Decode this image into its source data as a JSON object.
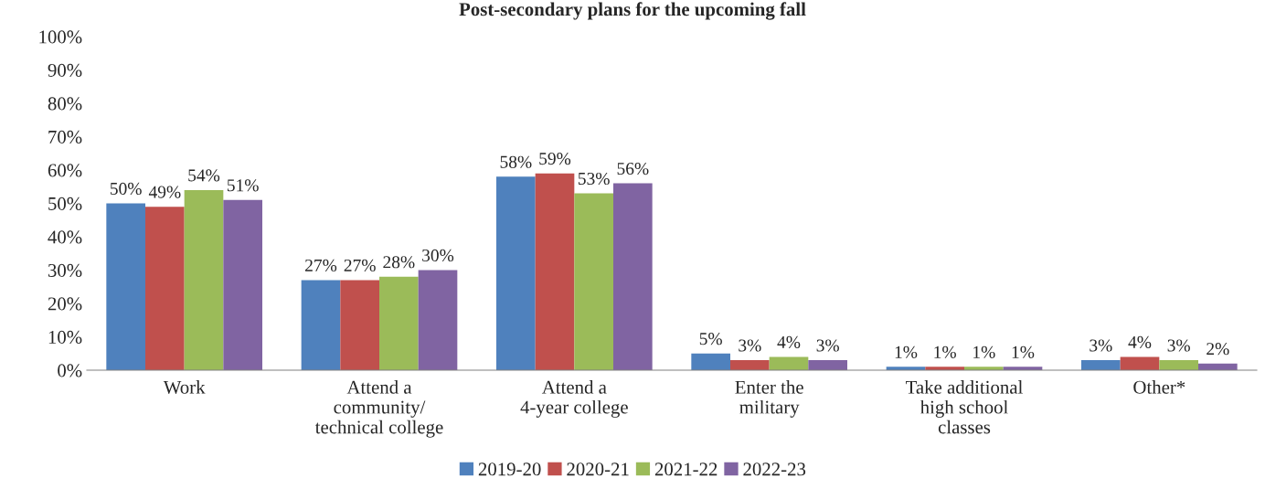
{
  "chart_data": {
    "type": "bar",
    "title": "Post-secondary plans for the upcoming fall",
    "categories": [
      "Work",
      "Attend a\ncommunity/\ntechnical college",
      "Attend a\n4-year college",
      "Enter the\nmilitary",
      "Take additional\nhigh school\nclasses",
      "Other*"
    ],
    "series": [
      {
        "name": "2019-20",
        "color": "#4f81bd",
        "values": [
          50,
          27,
          58,
          5,
          1,
          3
        ],
        "value_labels": [
          "50%",
          "27%",
          "58%",
          "5%",
          "1%",
          "3%"
        ]
      },
      {
        "name": "2020-21",
        "color": "#c0504d",
        "values": [
          49,
          27,
          59,
          3,
          1,
          4
        ],
        "value_labels": [
          "49%",
          "27%",
          "59%",
          "3%",
          "1%",
          "4%"
        ]
      },
      {
        "name": "2021-22",
        "color": "#9bbb59",
        "values": [
          54,
          28,
          53,
          4,
          1,
          3
        ],
        "value_labels": [
          "54%",
          "28%",
          "53%",
          "4%",
          "1%",
          "3%"
        ]
      },
      {
        "name": "2022-23",
        "color": "#8064a2",
        "values": [
          51,
          30,
          56,
          3,
          1,
          2
        ],
        "value_labels": [
          "51%",
          "30%",
          "56%",
          "3%",
          "1%",
          "2%"
        ]
      }
    ],
    "ylim": [
      0,
      100
    ],
    "yticks": [
      {
        "value": 0,
        "label": "0%"
      },
      {
        "value": 10,
        "label": "10%"
      },
      {
        "value": 20,
        "label": "20%"
      },
      {
        "value": 30,
        "label": "30%"
      },
      {
        "value": 40,
        "label": "40%"
      },
      {
        "value": 50,
        "label": "50%"
      },
      {
        "value": 60,
        "label": "60%"
      },
      {
        "value": 70,
        "label": "70%"
      },
      {
        "value": 80,
        "label": "80%"
      },
      {
        "value": 90,
        "label": "90%"
      },
      {
        "value": 100,
        "label": "100%"
      }
    ],
    "grid": false,
    "legend": "bottom"
  }
}
